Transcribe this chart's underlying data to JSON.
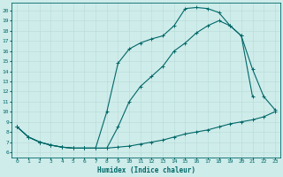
{
  "xlabel": "Humidex (Indice chaleur)",
  "bg_color": "#ceecea",
  "line_color": "#006868",
  "grid_color": "#b8dbd8",
  "xlim": [
    -0.5,
    23.5
  ],
  "ylim": [
    5.5,
    20.8
  ],
  "xticks": [
    0,
    1,
    2,
    3,
    4,
    5,
    6,
    7,
    8,
    9,
    10,
    11,
    12,
    13,
    14,
    15,
    16,
    17,
    18,
    19,
    20,
    21,
    22,
    23
  ],
  "yticks": [
    6,
    7,
    8,
    9,
    10,
    11,
    12,
    13,
    14,
    15,
    16,
    17,
    18,
    19,
    20
  ],
  "line1_x": [
    0,
    1,
    2,
    3,
    4,
    5,
    6,
    7,
    8,
    9,
    10,
    11,
    12,
    13,
    14,
    15,
    16,
    17,
    18,
    19,
    20,
    21,
    22,
    23
  ],
  "line1_y": [
    8.5,
    7.5,
    7.0,
    6.7,
    6.5,
    6.4,
    6.4,
    6.4,
    6.4,
    6.5,
    6.6,
    6.8,
    7.0,
    7.2,
    7.5,
    7.8,
    8.0,
    8.2,
    8.5,
    8.8,
    9.0,
    9.2,
    9.5,
    10.0
  ],
  "line2_x": [
    0,
    1,
    2,
    3,
    4,
    5,
    6,
    7,
    8,
    9,
    10,
    11,
    12,
    13,
    14,
    15,
    16,
    17,
    18,
    19,
    20,
    21
  ],
  "line2_y": [
    8.5,
    7.5,
    7.0,
    6.7,
    6.5,
    6.4,
    6.4,
    6.4,
    6.4,
    8.5,
    11.0,
    12.5,
    13.5,
    14.5,
    16.0,
    16.8,
    17.8,
    18.5,
    19.0,
    18.5,
    17.5,
    11.5
  ],
  "line3_x": [
    0,
    1,
    2,
    3,
    4,
    5,
    6,
    7,
    8,
    9,
    10,
    11,
    12,
    13,
    14,
    15,
    16,
    17,
    18,
    19,
    20,
    21,
    22,
    23
  ],
  "line3_y": [
    8.5,
    7.5,
    7.0,
    6.7,
    6.5,
    6.4,
    6.4,
    6.4,
    10.0,
    14.8,
    16.2,
    16.8,
    17.2,
    17.5,
    18.5,
    20.2,
    20.3,
    20.2,
    19.8,
    18.5,
    17.5,
    14.2,
    11.5,
    10.2
  ],
  "marker": "+",
  "markersize": 3,
  "linewidth": 0.8
}
